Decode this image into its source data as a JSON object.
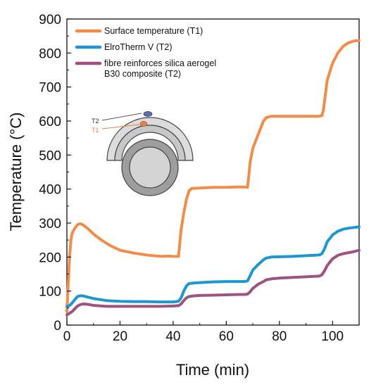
{
  "chart_data": {
    "type": "line",
    "xlabel": "Time (min)",
    "ylabel": "Temperature (°C)",
    "xlim": [
      0,
      110
    ],
    "ylim": [
      0,
      900
    ],
    "x_ticks": [
      0,
      20,
      40,
      60,
      80,
      100
    ],
    "y_ticks": [
      0,
      100,
      200,
      300,
      400,
      500,
      600,
      700,
      800,
      900
    ],
    "grid": false,
    "legend_position": "top-left",
    "series": [
      {
        "name": "Surface temperature (T1)",
        "color": "#F28C4A",
        "x": [
          0,
          0.5,
          1,
          1.5,
          2,
          3,
          4,
          5,
          6,
          8,
          10,
          13,
          16,
          20,
          25,
          30,
          34,
          36,
          38,
          40,
          42,
          42.5,
          43,
          44,
          45,
          46,
          47,
          50,
          55,
          60,
          64,
          67,
          68,
          68.5,
          69,
          70,
          72,
          73,
          74,
          75,
          77,
          80,
          85,
          90,
          95,
          96,
          96.5,
          97,
          98,
          100,
          102,
          104,
          106,
          108,
          110
        ],
        "y": [
          40,
          120,
          200,
          250,
          270,
          285,
          295,
          298,
          295,
          283,
          268,
          250,
          235,
          220,
          212,
          206,
          203,
          202,
          203,
          202,
          202,
          240,
          280,
          330,
          370,
          395,
          402,
          403,
          405,
          405,
          406,
          406,
          405,
          440,
          480,
          520,
          560,
          580,
          600,
          610,
          614,
          614,
          614,
          614,
          614,
          616,
          630,
          660,
          720,
          770,
          800,
          820,
          830,
          835,
          837
        ]
      },
      {
        "name": "ElroTherm V (T2)",
        "color": "#1E96D2",
        "x": [
          0,
          0.5,
          1,
          2,
          3,
          4,
          5,
          6,
          7,
          8,
          10,
          15,
          20,
          25,
          30,
          35,
          40,
          42,
          43,
          44,
          45,
          46,
          48,
          50,
          55,
          60,
          65,
          67,
          68,
          69,
          70,
          72,
          73,
          74,
          75,
          77,
          80,
          85,
          90,
          95,
          96,
          97,
          98,
          100,
          102,
          104,
          106,
          108,
          110
        ],
        "y": [
          55,
          55,
          58,
          65,
          75,
          84,
          86,
          86,
          84,
          82,
          78,
          72,
          70,
          69,
          69,
          68,
          68,
          70,
          80,
          100,
          115,
          122,
          124,
          125,
          127,
          128,
          128,
          128,
          130,
          145,
          162,
          178,
          185,
          192,
          197,
          200,
          201,
          202,
          204,
          206,
          210,
          225,
          245,
          265,
          276,
          282,
          285,
          287,
          289
        ]
      },
      {
        "name": "fibre reinforces silica aerogel B30 composite (T2)",
        "color": "#A0527E",
        "x": [
          0,
          0.5,
          1,
          2,
          3,
          4,
          5,
          6,
          8,
          10,
          15,
          20,
          25,
          30,
          35,
          40,
          42,
          43,
          44,
          45,
          46,
          48,
          50,
          55,
          60,
          65,
          67,
          68,
          69,
          70,
          72,
          74,
          75,
          77,
          80,
          85,
          90,
          95,
          96,
          97,
          98,
          100,
          102,
          104,
          106,
          108,
          110
        ],
        "y": [
          30,
          32,
          35,
          40,
          48,
          56,
          60,
          62,
          61,
          58,
          55,
          55,
          55,
          55,
          55,
          56,
          57,
          62,
          72,
          80,
          84,
          86,
          87,
          88,
          89,
          90,
          90,
          91,
          98,
          108,
          120,
          128,
          133,
          136,
          138,
          140,
          142,
          144,
          148,
          160,
          175,
          195,
          205,
          210,
          213,
          216,
          220
        ]
      }
    ],
    "inset": {
      "labels": [
        "T2",
        "T1"
      ],
      "label_colors": [
        "#333333",
        "#E8804A"
      ]
    }
  },
  "legend": {
    "items": [
      {
        "lines": [
          "Surface temperature (T1)"
        ],
        "color": "#F28C4A"
      },
      {
        "lines": [
          "ElroTherm V (T2)"
        ],
        "color": "#1E96D2"
      },
      {
        "lines": [
          "fibre reinforces silica aerogel",
          "B30 composite (T2)"
        ],
        "color": "#A0527E"
      }
    ]
  }
}
